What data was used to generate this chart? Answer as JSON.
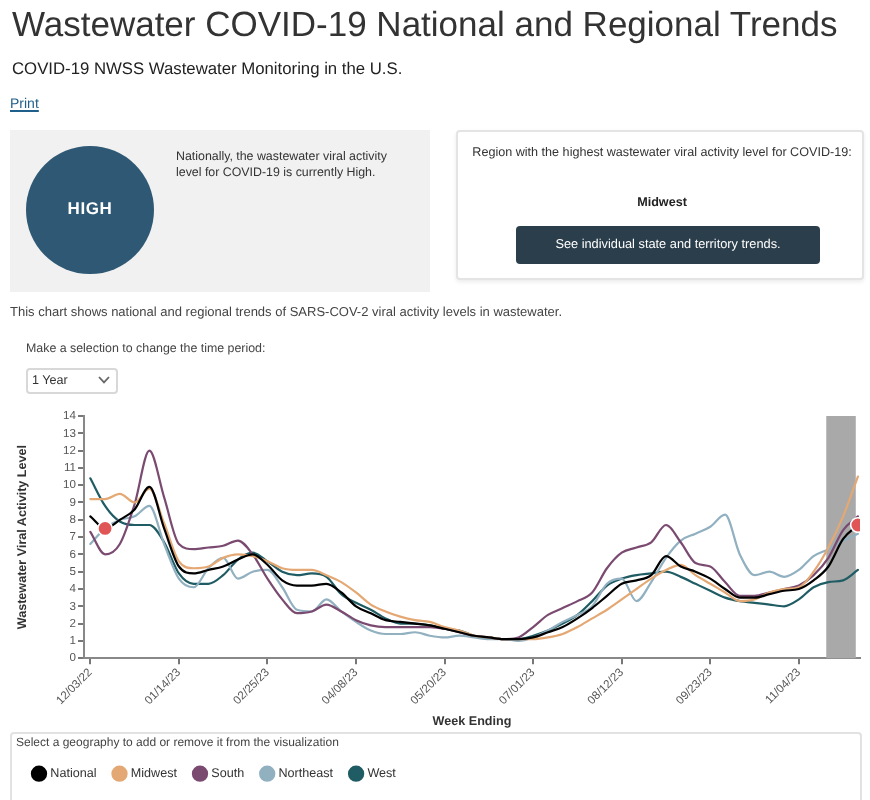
{
  "chart_data": {
    "type": "line",
    "title": "Wastewater COVID-19 National and Regional Trends",
    "subtitle": "COVID-19 NWSS Wastewater Monitoring in the U.S.",
    "annotations": [
      "Print",
      "HIGH",
      "Nationally, the wastewater viral activity level for COVID-19 is currently High.",
      "Region with the highest wastewater viral activity level for COVID-19:",
      "Midwest",
      "See individual state and territory trends.",
      "This chart shows national and regional trends of SARS-COV-2 viral activity levels in wastewater.",
      "Make a selection to change the time period:",
      "1 Year"
    ],
    "xlabel": "Week Ending",
    "ylabel": "Wastewater Viral Activity Level",
    "legend_title": "Select a geography to add or remove it from the visualization",
    "legend": "bottom left",
    "x": [
      "2022-12-03",
      "2022-12-10",
      "2022-12-17",
      "2022-12-24",
      "2022-12-31",
      "2023-01-07",
      "2023-01-14",
      "2023-01-21",
      "2023-01-28",
      "2023-02-04",
      "2023-02-11",
      "2023-02-18",
      "2023-02-25",
      "2023-03-04",
      "2023-03-11",
      "2023-03-18",
      "2023-03-25",
      "2023-04-01",
      "2023-04-08",
      "2023-04-15",
      "2023-04-22",
      "2023-04-29",
      "2023-05-06",
      "2023-05-13",
      "2023-05-20",
      "2023-05-27",
      "2023-06-03",
      "2023-06-10",
      "2023-06-17",
      "2023-06-24",
      "2023-07-01",
      "2023-07-08",
      "2023-07-15",
      "2023-07-22",
      "2023-07-29",
      "2023-08-05",
      "2023-08-12",
      "2023-08-19",
      "2023-08-26",
      "2023-09-02",
      "2023-09-09",
      "2023-09-16",
      "2023-09-23",
      "2023-09-30",
      "2023-10-07",
      "2023-10-14",
      "2023-10-21",
      "2023-10-28",
      "2023-11-04",
      "2023-11-11",
      "2023-11-18",
      "2023-11-25",
      "2023-12-02"
    ],
    "xlim": [
      "2022-11-30",
      "2023-12-03"
    ],
    "xticks": [
      {
        "value": "2022-12-03",
        "label": "12/03/22"
      },
      {
        "value": "2023-01-14",
        "label": "01/14/23"
      },
      {
        "value": "2023-02-25",
        "label": "02/25/23"
      },
      {
        "value": "2023-04-08",
        "label": "04/08/23"
      },
      {
        "value": "2023-05-20",
        "label": "05/20/23"
      },
      {
        "value": "2023-07-01",
        "label": "07/01/23"
      },
      {
        "value": "2023-08-12",
        "label": "08/12/23"
      },
      {
        "value": "2023-09-23",
        "label": "09/23/23"
      },
      {
        "value": "2023-11-04",
        "label": "11/04/23"
      }
    ],
    "ylim": [
      0,
      14
    ],
    "yticks": [
      0,
      1,
      2,
      3,
      4,
      5,
      6,
      7,
      8,
      9,
      10,
      11,
      12,
      13,
      14
    ],
    "bands": [
      {
        "axis": "x",
        "from": "2023-11-17",
        "to": "2023-12-01",
        "color": "#a9a9a9"
      }
    ],
    "series": [
      {
        "name": "National",
        "color": "#000000",
        "values": [
          8.2,
          7.5,
          8.0,
          8.6,
          9.9,
          7.5,
          5.3,
          4.9,
          5.1,
          5.3,
          5.7,
          6.0,
          5.4,
          4.5,
          4.2,
          4.2,
          4.3,
          3.8,
          3.0,
          2.6,
          2.2,
          2.1,
          2.0,
          1.9,
          1.7,
          1.5,
          1.3,
          1.2,
          1.1,
          1.1,
          1.2,
          1.5,
          1.8,
          2.3,
          2.9,
          3.6,
          4.3,
          4.5,
          4.8,
          5.9,
          5.3,
          5.0,
          4.6,
          4.0,
          3.5,
          3.5,
          3.7,
          3.9,
          4.0,
          4.5,
          5.3,
          6.9,
          7.7
        ]
      },
      {
        "name": "Midwest",
        "color": "#e3a873",
        "values": [
          9.2,
          9.2,
          9.5,
          9.0,
          9.8,
          7.8,
          5.6,
          5.2,
          5.3,
          5.8,
          6.0,
          5.9,
          5.6,
          5.2,
          5.1,
          5.1,
          4.8,
          4.4,
          3.8,
          3.1,
          2.7,
          2.4,
          2.2,
          2.1,
          1.8,
          1.6,
          1.3,
          1.2,
          1.1,
          1.1,
          1.1,
          1.2,
          1.4,
          1.8,
          2.3,
          2.8,
          3.4,
          4.0,
          4.6,
          5.1,
          5.4,
          4.8,
          4.3,
          3.8,
          3.3,
          3.4,
          3.8,
          4.0,
          4.1,
          5.0,
          6.4,
          8.2,
          10.5
        ]
      },
      {
        "name": "South",
        "color": "#7a4a70",
        "values": [
          7.3,
          6.0,
          6.6,
          8.9,
          12.0,
          9.3,
          6.6,
          6.3,
          6.4,
          6.5,
          6.8,
          6.0,
          4.6,
          3.4,
          2.6,
          2.7,
          3.1,
          2.7,
          2.2,
          1.9,
          1.8,
          1.8,
          1.8,
          1.8,
          1.7,
          1.5,
          1.3,
          1.2,
          1.1,
          1.2,
          1.8,
          2.5,
          2.9,
          3.3,
          3.8,
          5.2,
          6.1,
          6.4,
          6.7,
          7.7,
          6.7,
          5.5,
          5.3,
          4.4,
          3.6,
          3.6,
          3.8,
          4.0,
          4.2,
          4.8,
          5.8,
          7.4,
          8.2
        ]
      },
      {
        "name": "Northeast",
        "color": "#91b0c0",
        "values": [
          6.6,
          7.5,
          8.0,
          8.2,
          8.8,
          6.6,
          4.6,
          4.1,
          5.2,
          5.8,
          4.6,
          5.0,
          5.1,
          4.1,
          2.8,
          2.7,
          3.4,
          2.7,
          2.1,
          1.6,
          1.4,
          1.4,
          1.5,
          1.3,
          1.2,
          1.3,
          1.2,
          1.1,
          1.1,
          1.0,
          1.2,
          1.6,
          2.1,
          2.5,
          3.0,
          4.3,
          4.6,
          3.3,
          4.4,
          5.8,
          6.8,
          7.2,
          7.6,
          8.3,
          6.0,
          4.8,
          5.0,
          4.7,
          5.1,
          5.9,
          6.3,
          6.8,
          7.2
        ]
      },
      {
        "name": "West",
        "color": "#1f5c63",
        "values": [
          10.4,
          8.8,
          7.9,
          7.7,
          7.7,
          6.7,
          4.9,
          4.3,
          4.3,
          4.8,
          5.7,
          6.1,
          5.6,
          5.0,
          4.8,
          4.9,
          4.7,
          3.7,
          3.2,
          2.8,
          2.3,
          2.0,
          2.0,
          1.9,
          1.7,
          1.6,
          1.3,
          1.2,
          1.1,
          1.1,
          1.3,
          1.6,
          2.0,
          2.5,
          3.3,
          4.2,
          4.6,
          4.8,
          4.9,
          5.0,
          4.7,
          4.3,
          3.9,
          3.5,
          3.3,
          3.2,
          3.1,
          3.0,
          3.4,
          4.1,
          4.4,
          4.5,
          5.1
        ]
      },
      {
        "type": "scatter",
        "marker": "circle",
        "color": "#e05555",
        "x": [
          "2022-12-10",
          "2023-12-02"
        ],
        "values": [
          7.5,
          7.7
        ]
      }
    ]
  }
}
